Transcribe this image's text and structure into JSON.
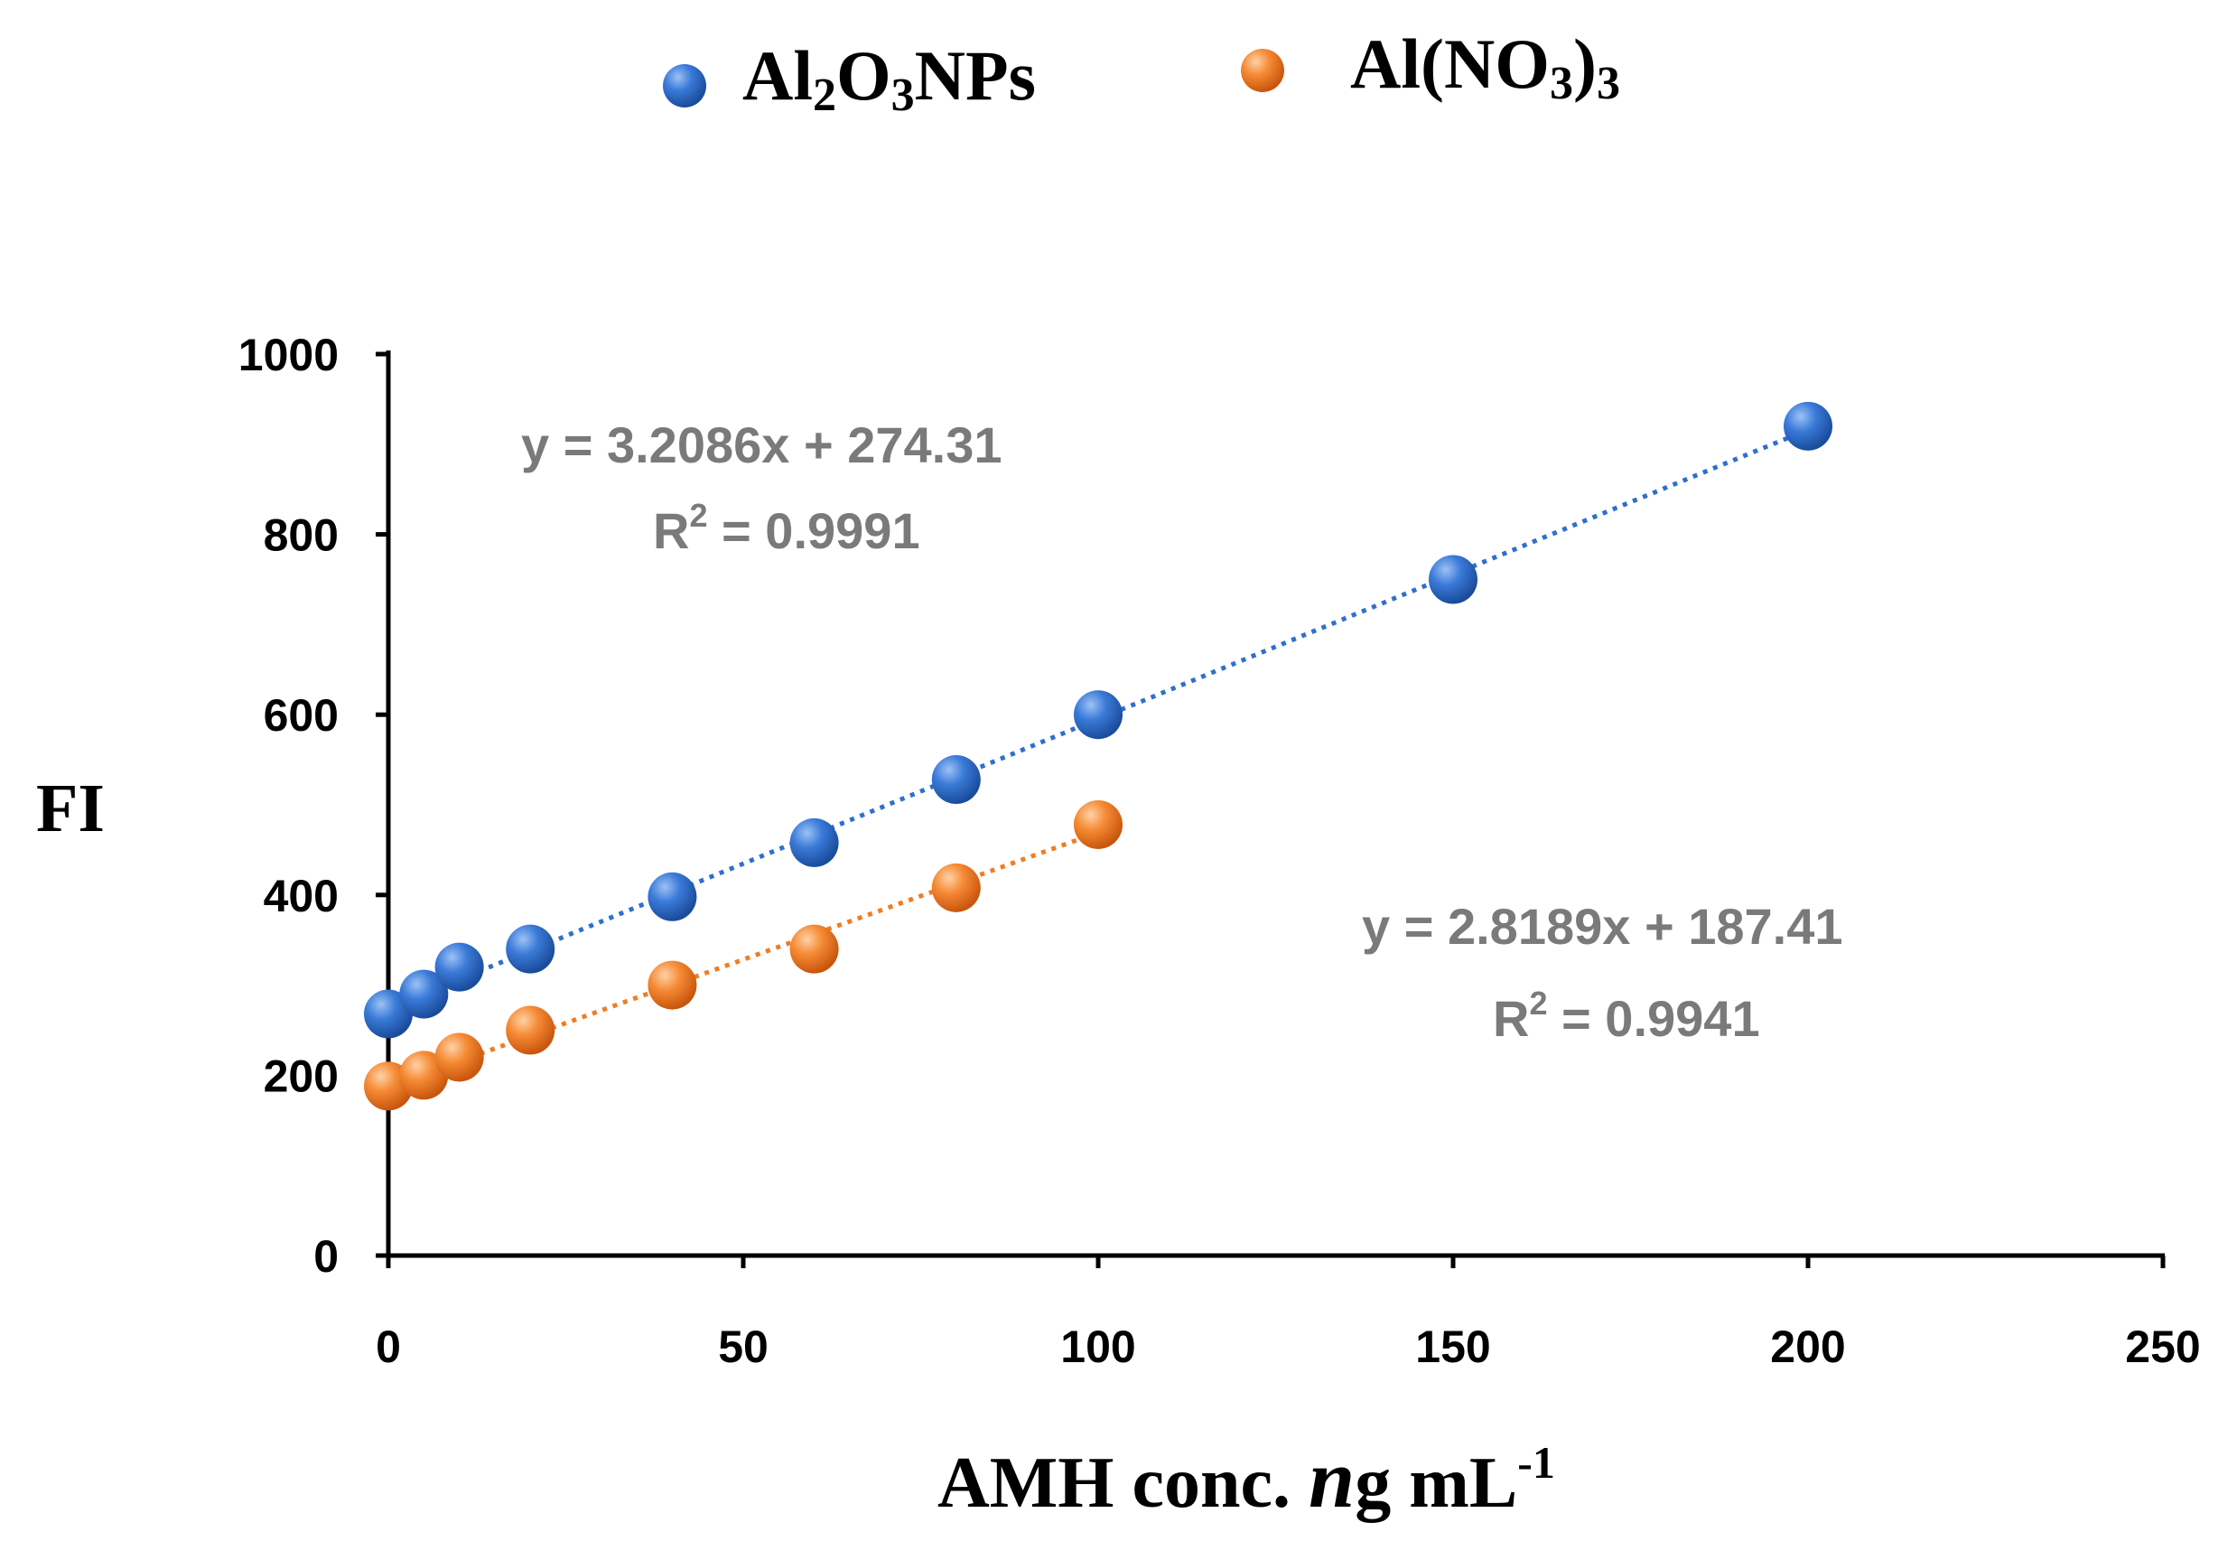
{
  "chart_data": {
    "type": "scatter",
    "title": "",
    "xlabel": "AMH conc. ng mL-1",
    "xlabel_parts": {
      "main": "AMH conc. ",
      "italic": "n",
      "rest": "g mL",
      "sup": "-1"
    },
    "ylabel": "FI",
    "xlim": [
      0,
      250
    ],
    "ylim": [
      0,
      1000
    ],
    "xticks": [
      "0",
      "50",
      "100",
      "150",
      "200",
      "250"
    ],
    "yticks": [
      "0",
      "200",
      "400",
      "600",
      "800",
      "1000"
    ],
    "legend_position": "top",
    "series": [
      {
        "name": "Al2O3NPs",
        "name_parts": [
          "Al",
          "2",
          "O",
          "3",
          "NPs"
        ],
        "color": "#2e6fcf",
        "x": [
          0,
          5,
          10,
          20,
          40,
          60,
          80,
          100,
          150,
          200
        ],
        "y": [
          268,
          290,
          320,
          340,
          398,
          458,
          528,
          600,
          750,
          920
        ],
        "trendline": {
          "slope": 3.2086,
          "intercept": 274.31,
          "x_range": [
            0,
            200
          ],
          "style": "dotted"
        },
        "equation": "y = 3.2086x + 274.31",
        "r2_label": "R",
        "r2_sup": "2",
        "r2_value": " = 0.9991"
      },
      {
        "name": "Al(NO3)3",
        "name_parts": [
          "Al(NO",
          "3",
          ")",
          "3"
        ],
        "color": "#f07c22",
        "x": [
          0,
          5,
          10,
          20,
          40,
          60,
          80,
          100
        ],
        "y": [
          188,
          200,
          220,
          250,
          300,
          340,
          408,
          478
        ],
        "trendline": {
          "slope": 2.8189,
          "intercept": 187.41,
          "x_range": [
            0,
            100
          ],
          "style": "dotted"
        },
        "equation": "y = 2.8189x + 187.41",
        "r2_label": "R",
        "r2_sup": "2",
        "r2_value": " = 0.9941"
      }
    ]
  }
}
